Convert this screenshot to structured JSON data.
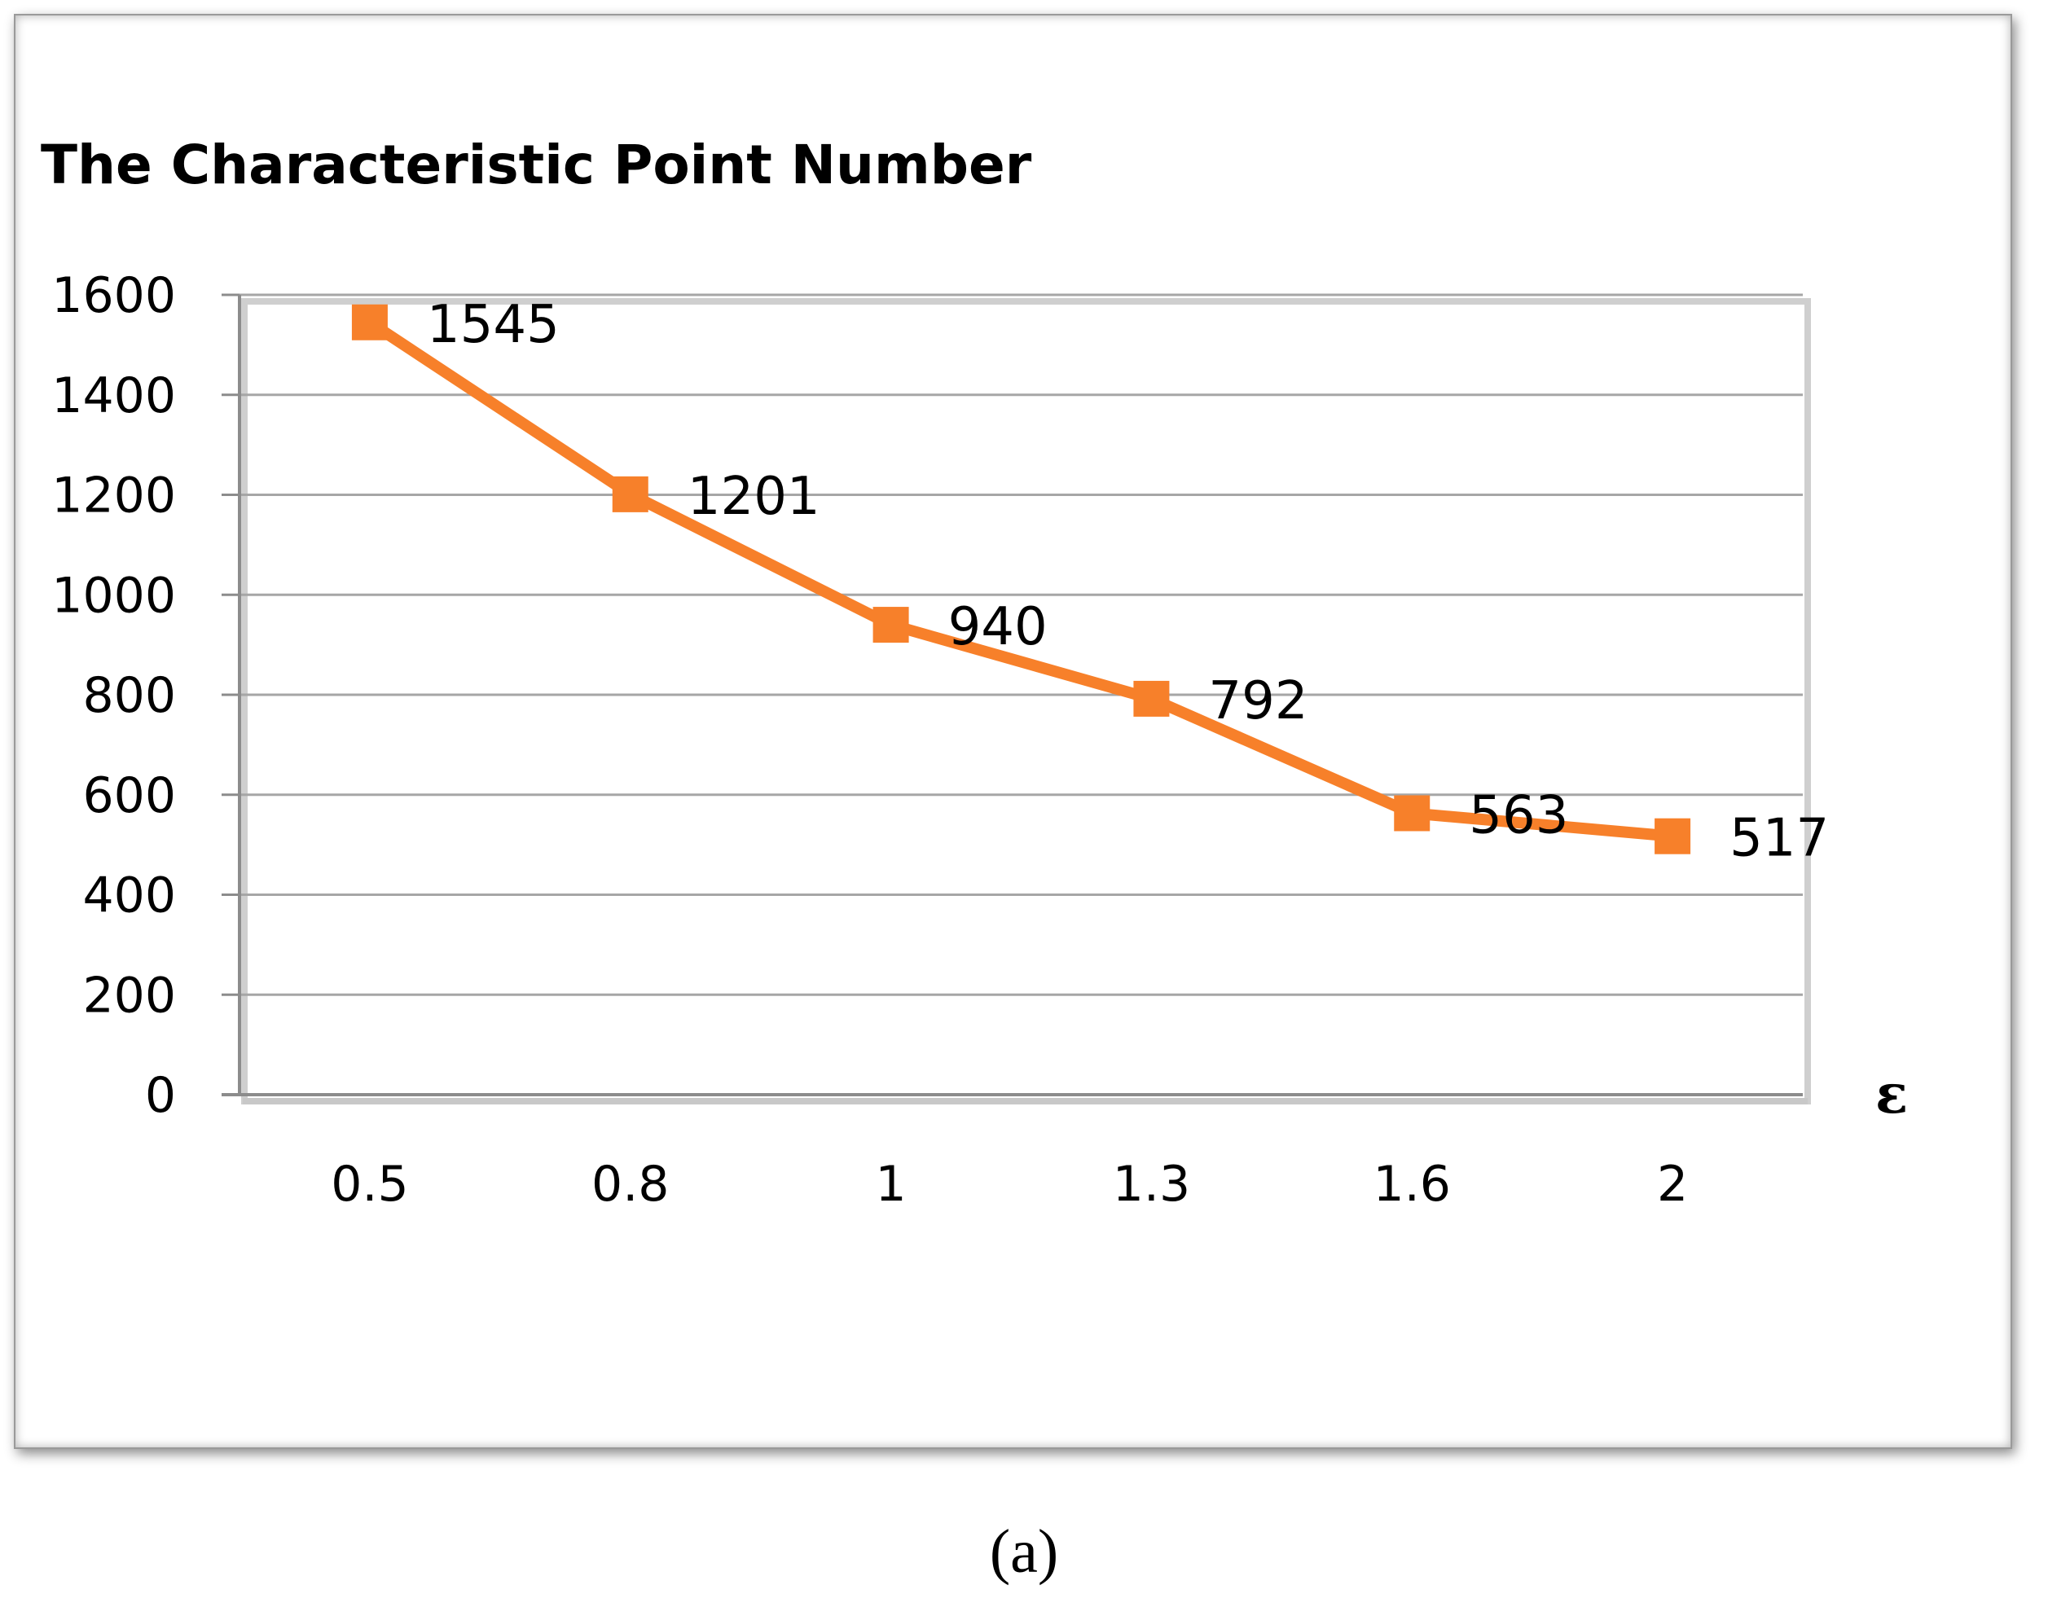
{
  "chart_data": {
    "type": "line",
    "title": "The Characteristic Point Number",
    "xlabel": "ε",
    "ylabel": "",
    "categories": [
      "0.5",
      "0.8",
      "1",
      "1.3",
      "1.6",
      "2"
    ],
    "series": [
      {
        "values": [
          1545,
          1201,
          940,
          792,
          563,
          517
        ],
        "data_labels": [
          "1545",
          "1201",
          "940",
          "792",
          "563",
          "517"
        ]
      }
    ],
    "ylim": [
      0,
      1600
    ],
    "yticks": [
      "0",
      "200",
      "400",
      "600",
      "800",
      "1000",
      "1200",
      "1400",
      "1600"
    ],
    "grid": true,
    "legend": "none",
    "colors": {
      "series": "#f7802a",
      "grid": "#a6a6a6",
      "axis": "#8c8c8c"
    }
  },
  "caption": "(a)"
}
